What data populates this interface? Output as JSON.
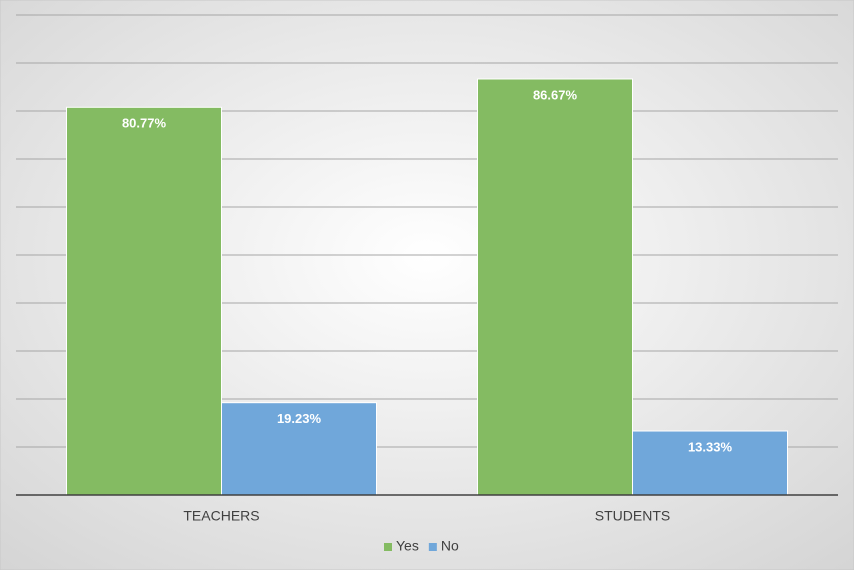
{
  "chart_data": {
    "type": "bar",
    "categories": [
      "TEACHERS",
      "STUDENTS"
    ],
    "series": [
      {
        "name": "Yes",
        "color": "#84bb62",
        "values": [
          80.77,
          86.67
        ],
        "value_labels": [
          "80.77%",
          "86.67%"
        ]
      },
      {
        "name": "No",
        "color": "#70a7da",
        "values": [
          19.23,
          13.33
        ],
        "value_labels": [
          "19.23%",
          "13.33%"
        ]
      }
    ],
    "ylim": [
      0,
      100
    ],
    "yticks": [
      0,
      10,
      20,
      30,
      40,
      50,
      60,
      70,
      80,
      90,
      100
    ],
    "grid": true,
    "legend": "bottom"
  }
}
